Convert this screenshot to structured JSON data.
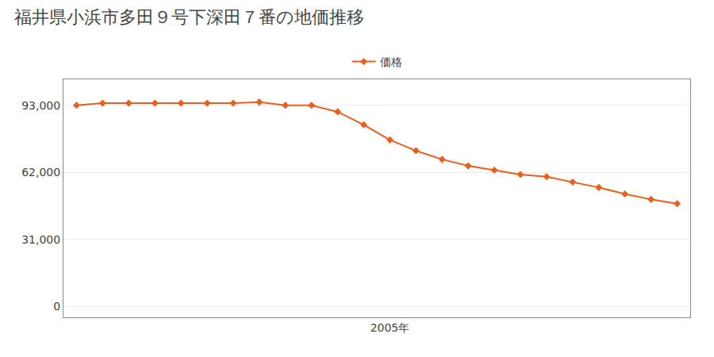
{
  "chart_data": {
    "type": "line",
    "title": "福井県小浜市多田９号下深田７番の地価推移",
    "x": [
      1993,
      1994,
      1995,
      1996,
      1997,
      1998,
      1999,
      2000,
      2001,
      2002,
      2003,
      2004,
      2005,
      2006,
      2007,
      2008,
      2009,
      2010,
      2011,
      2012,
      2013,
      2014,
      2015,
      2016
    ],
    "series": [
      {
        "name": "価格",
        "color": "#e8601c",
        "marker": "diamond",
        "values": [
          93000,
          94000,
          94000,
          94000,
          94000,
          94000,
          94000,
          94500,
          93000,
          93000,
          90000,
          84000,
          77000,
          72000,
          68000,
          65000,
          63000,
          61000,
          60000,
          57500,
          55000,
          52000,
          49500,
          47500
        ]
      }
    ],
    "xlim": [
      1992.5,
      2016.5
    ],
    "xticks": [
      {
        "value": 2005,
        "label": "2005年"
      }
    ],
    "ylim": [
      -5000,
      105000
    ],
    "yticks": [
      0,
      {
        "value": 31000,
        "label": "31,000"
      },
      {
        "value": 62000,
        "label": "62,000"
      },
      {
        "value": 93000,
        "label": "93,000"
      }
    ],
    "grid": "y",
    "legend": "top"
  }
}
